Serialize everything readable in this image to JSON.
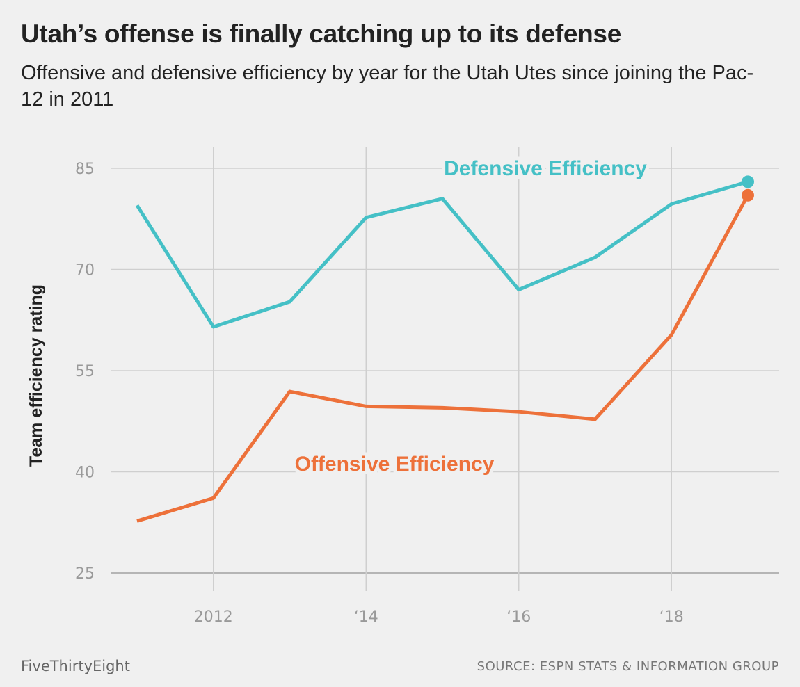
{
  "header": {
    "title": "Utah’s offense is finally catching up to its defense",
    "subtitle": "Offensive and defensive efficiency by year for the Utah Utes since joining the Pac-12 in 2011"
  },
  "footer": {
    "brand": "FiveThirtyEight",
    "source": "SOURCE: ESPN STATS & INFORMATION GROUP"
  },
  "chart_data": {
    "type": "line",
    "ylabel": "Team efficiency rating",
    "xlim": [
      2011,
      2019
    ],
    "ylim": [
      25,
      85
    ],
    "yticks": [
      {
        "value": 85,
        "label": "85"
      },
      {
        "value": 70,
        "label": "70"
      },
      {
        "value": 55,
        "label": "55"
      },
      {
        "value": 40,
        "label": "40"
      },
      {
        "value": 25,
        "label": "25"
      }
    ],
    "xticks": [
      {
        "value": 2012,
        "label": "2012"
      },
      {
        "value": 2014,
        "label": "‘14"
      },
      {
        "value": 2016,
        "label": "‘16"
      },
      {
        "value": 2018,
        "label": "‘18"
      }
    ],
    "grid": true,
    "x": [
      2011,
      2012,
      2013,
      2014,
      2015,
      2016,
      2017,
      2018,
      2019
    ],
    "series": [
      {
        "name": "Defensive Efficiency",
        "color": "#45c0c6",
        "values": [
          79.5,
          61.5,
          65.2,
          77.7,
          80.5,
          67.0,
          71.8,
          79.7,
          83.0
        ]
      },
      {
        "name": "Offensive Efficiency",
        "color": "#ed713a",
        "values": [
          32.7,
          36.1,
          51.9,
          49.7,
          49.5,
          48.9,
          47.8,
          60.3,
          81.0
        ]
      }
    ]
  }
}
